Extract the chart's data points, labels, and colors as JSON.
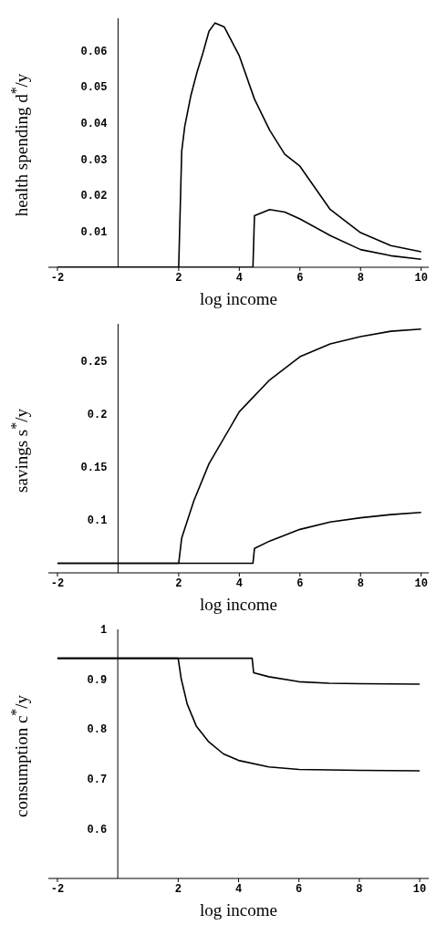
{
  "chart_data": [
    {
      "type": "line",
      "xlabel": "log income",
      "ylabel": "health spending d$^{*}$/y",
      "xlim": [
        -2.3,
        10.25
      ],
      "ylim": [
        0,
        0.069
      ],
      "xticks": [
        -2,
        2,
        4,
        6,
        8,
        10
      ],
      "yticks": [
        {
          "value": 0.01,
          "label": "0.01"
        },
        {
          "value": 0.02,
          "label": "0.02"
        },
        {
          "value": 0.03,
          "label": "0.03"
        },
        {
          "value": 0.04,
          "label": "0.04"
        },
        {
          "value": 0.05,
          "label": "0.05"
        },
        {
          "value": 0.06,
          "label": "0.06"
        }
      ],
      "series": [
        {
          "color": "#000000",
          "x": [
            -2,
            2,
            2.1,
            2.2,
            2.4,
            2.6,
            2.8,
            3,
            3.2,
            3.5,
            4,
            4.5,
            5,
            5.5,
            6,
            7,
            8,
            9,
            10
          ],
          "values": [
            0,
            0,
            0.0322,
            0.039,
            0.0475,
            0.0539,
            0.0594,
            0.0654,
            0.0677,
            0.0666,
            0.0586,
            0.0466,
            0.038,
            0.0313,
            0.028,
            0.016,
            0.0096,
            0.006,
            0.0043
          ]
        },
        {
          "color": "#000000",
          "x": [
            -2,
            4.45,
            4.5,
            5,
            5.5,
            6,
            7,
            8,
            9,
            10
          ],
          "values": [
            0,
            0,
            0.0143,
            0.016,
            0.0153,
            0.0134,
            0.0088,
            0.0049,
            0.0032,
            0.0022
          ]
        }
      ]
    },
    {
      "type": "line",
      "xlabel": "log income",
      "ylabel": "savings s$^{*}$/y",
      "xlim": [
        -2.3,
        10.25
      ],
      "ylim": [
        0.05,
        0.285
      ],
      "xticks": [
        -2,
        2,
        4,
        6,
        8,
        10
      ],
      "yticks": [
        0.1,
        0.15,
        0.2,
        0.25
      ],
      "series": [
        {
          "color": "#000000",
          "x": [
            -2,
            2,
            2.1,
            2.5,
            3,
            4,
            5,
            6,
            7,
            8,
            9,
            10
          ],
          "values": [
            0.059,
            0.059,
            0.083,
            0.118,
            0.153,
            0.202,
            0.232,
            0.254,
            0.266,
            0.273,
            0.278,
            0.28
          ]
        },
        {
          "color": "#000000",
          "x": [
            -2,
            4.45,
            4.5,
            5,
            6,
            7,
            8,
            9,
            10
          ],
          "values": [
            0.059,
            0.059,
            0.073,
            0.08,
            0.091,
            0.098,
            0.102,
            0.105,
            0.107
          ]
        }
      ]
    },
    {
      "type": "line",
      "xlabel": "log income",
      "ylabel": "consumption c$^{*}$/y",
      "xlim": [
        -2.3,
        10.3
      ],
      "ylim": [
        0.5,
        1
      ],
      "xticks": [
        -2,
        2,
        4,
        6,
        8,
        10
      ],
      "yticks": [
        0.6,
        0.7,
        0.8,
        0.9,
        1
      ],
      "series": [
        {
          "color": "#000000",
          "x": [
            -2,
            2,
            2.1,
            2.3,
            2.6,
            3,
            3.5,
            4,
            5,
            6,
            8,
            10
          ],
          "values": [
            0.942,
            0.942,
            0.901,
            0.85,
            0.806,
            0.775,
            0.75,
            0.737,
            0.724,
            0.719,
            0.717,
            0.716
          ]
        },
        {
          "color": "#000000",
          "x": [
            -2,
            4.45,
            4.5,
            5,
            6,
            7,
            8,
            10
          ],
          "values": [
            0.942,
            0.942,
            0.913,
            0.905,
            0.895,
            0.892,
            0.891,
            0.89
          ]
        }
      ]
    }
  ]
}
